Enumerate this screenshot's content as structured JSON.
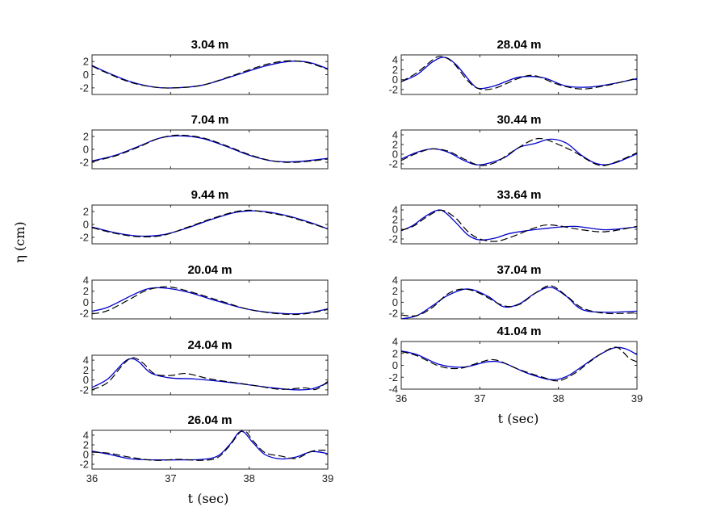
{
  "figure": {
    "ylabel": "η (cm)",
    "xlabel": "t (sec)"
  },
  "chart_data": [
    {
      "type": "line",
      "title": "3.04 m",
      "xlim": [
        36,
        39
      ],
      "ylim": [
        -3,
        3
      ],
      "yticks": [
        -2,
        0,
        2
      ],
      "xticks": [],
      "series": [
        {
          "style": "model",
          "color": "#0000cc",
          "x": [
            36,
            36.2,
            36.5,
            36.8,
            37.05,
            37.4,
            37.8,
            38.2,
            38.5,
            38.75,
            39
          ],
          "y": [
            1.4,
            0.3,
            -1.1,
            -1.9,
            -2.0,
            -1.6,
            -0.2,
            1.3,
            2.0,
            1.9,
            0.9
          ]
        },
        {
          "style": "measured",
          "color": "#000000",
          "x": [
            36,
            36.2,
            36.5,
            36.8,
            37.05,
            37.4,
            37.8,
            38.2,
            38.5,
            38.75,
            39
          ],
          "y": [
            1.3,
            0.2,
            -1.2,
            -1.9,
            -2.0,
            -1.6,
            -0.1,
            1.5,
            2.1,
            1.8,
            0.8
          ]
        }
      ]
    },
    {
      "type": "line",
      "title": "7.04 m",
      "xlim": [
        36,
        39
      ],
      "ylim": [
        -3,
        3
      ],
      "yticks": [
        -2,
        0,
        2
      ],
      "xticks": [],
      "series": [
        {
          "style": "model",
          "color": "#0000cc",
          "x": [
            36,
            36.3,
            36.6,
            36.85,
            37.1,
            37.4,
            37.7,
            38.0,
            38.3,
            38.6,
            39
          ],
          "y": [
            -1.8,
            -0.9,
            0.5,
            1.7,
            2.1,
            1.7,
            0.5,
            -0.9,
            -1.8,
            -1.9,
            -1.4
          ]
        },
        {
          "style": "measured",
          "color": "#000000",
          "x": [
            36,
            36.3,
            36.6,
            36.85,
            37.1,
            37.4,
            37.7,
            38.0,
            38.3,
            38.6,
            39
          ],
          "y": [
            -1.9,
            -1.0,
            0.4,
            1.7,
            2.2,
            1.8,
            0.6,
            -0.8,
            -1.8,
            -2.0,
            -1.5
          ]
        }
      ]
    },
    {
      "type": "line",
      "title": "9.44 m",
      "xlim": [
        36,
        39
      ],
      "ylim": [
        -3,
        3
      ],
      "yticks": [
        -2,
        0,
        2
      ],
      "xticks": [],
      "series": [
        {
          "style": "model",
          "color": "#0000cc",
          "x": [
            36,
            36.3,
            36.6,
            36.9,
            37.2,
            37.5,
            37.8,
            38.0,
            38.2,
            38.5,
            38.8,
            39
          ],
          "y": [
            -0.4,
            -1.3,
            -1.8,
            -1.6,
            -0.6,
            0.7,
            1.8,
            2.1,
            2.0,
            1.3,
            0.2,
            -0.7
          ]
        },
        {
          "style": "measured",
          "color": "#000000",
          "x": [
            36,
            36.3,
            36.6,
            36.9,
            37.2,
            37.5,
            37.8,
            38.0,
            38.2,
            38.5,
            38.8,
            39
          ],
          "y": [
            -0.5,
            -1.4,
            -1.9,
            -1.7,
            -0.5,
            0.8,
            1.9,
            2.2,
            1.9,
            1.2,
            0.1,
            -0.7
          ]
        }
      ]
    },
    {
      "type": "line",
      "title": "20.04 m",
      "xlim": [
        36,
        39
      ],
      "ylim": [
        -3,
        4
      ],
      "yticks": [
        -2,
        0,
        2,
        4
      ],
      "xticks": [],
      "series": [
        {
          "style": "model",
          "color": "#0000cc",
          "x": [
            36,
            36.2,
            36.5,
            36.7,
            36.9,
            37.2,
            37.6,
            38.0,
            38.4,
            38.7,
            39
          ],
          "y": [
            -1.6,
            -0.9,
            1.2,
            2.4,
            2.6,
            1.9,
            0.2,
            -1.3,
            -2.0,
            -2.0,
            -1.2
          ]
        },
        {
          "style": "measured",
          "color": "#000000",
          "x": [
            36,
            36.2,
            36.5,
            36.7,
            36.95,
            37.2,
            37.6,
            38.0,
            38.4,
            38.7,
            39
          ],
          "y": [
            -2.1,
            -1.5,
            0.7,
            2.2,
            2.8,
            2.1,
            0.4,
            -1.3,
            -2.1,
            -2.1,
            -1.3
          ]
        }
      ]
    },
    {
      "type": "line",
      "title": "24.04 m",
      "xlim": [
        36,
        39
      ],
      "ylim": [
        -3,
        5
      ],
      "yticks": [
        -2,
        0,
        2,
        4
      ],
      "xticks": [],
      "series": [
        {
          "style": "model",
          "color": "#0000cc",
          "x": [
            36,
            36.2,
            36.4,
            36.5,
            36.6,
            36.75,
            37.0,
            37.3,
            37.7,
            38.0,
            38.3,
            38.6,
            38.8,
            39
          ],
          "y": [
            -1.5,
            0.2,
            3.5,
            4.3,
            3.6,
            1.4,
            0.4,
            0.2,
            -0.4,
            -1.0,
            -1.6,
            -2.0,
            -1.8,
            -0.6
          ]
        },
        {
          "style": "measured",
          "color": "#000000",
          "x": [
            36,
            36.2,
            36.4,
            36.52,
            36.65,
            36.8,
            37.0,
            37.2,
            37.5,
            37.8,
            38.1,
            38.4,
            38.7,
            38.85,
            39
          ],
          "y": [
            -2.0,
            -0.5,
            3.2,
            4.5,
            3.4,
            1.2,
            0.9,
            1.3,
            0.2,
            -0.5,
            -1.2,
            -1.9,
            -1.6,
            -1.9,
            -0.3
          ]
        }
      ]
    },
    {
      "type": "line",
      "title": "26.04 m",
      "xlim": [
        36,
        39
      ],
      "ylim": [
        -3,
        5
      ],
      "yticks": [
        -2,
        0,
        2,
        4
      ],
      "xticks": [
        36,
        37,
        38,
        39
      ],
      "series": [
        {
          "style": "model",
          "color": "#0000cc",
          "x": [
            36,
            36.2,
            36.5,
            36.8,
            37.1,
            37.4,
            37.6,
            37.75,
            37.9,
            38.05,
            38.2,
            38.4,
            38.6,
            38.8,
            39
          ],
          "y": [
            0.7,
            0.1,
            -0.9,
            -1.1,
            -1.1,
            -1.0,
            -0.3,
            2.0,
            4.8,
            2.4,
            0.0,
            -0.9,
            -0.5,
            0.6,
            0.2
          ]
        },
        {
          "style": "measured",
          "color": "#000000",
          "x": [
            36,
            36.2,
            36.5,
            36.8,
            37.1,
            37.4,
            37.6,
            37.75,
            37.92,
            38.05,
            38.2,
            38.4,
            38.6,
            38.8,
            39
          ],
          "y": [
            0.5,
            0.3,
            -0.6,
            -1.2,
            -1.0,
            -1.2,
            -0.6,
            1.8,
            5.0,
            2.8,
            0.4,
            -0.3,
            -0.8,
            0.7,
            0.9
          ]
        }
      ]
    },
    {
      "type": "line",
      "title": "28.04 m",
      "xlim": [
        36,
        39
      ],
      "ylim": [
        -3,
        5
      ],
      "yticks": [
        -2,
        0,
        2,
        4
      ],
      "xticks": [],
      "series": [
        {
          "style": "model",
          "color": "#0000cc",
          "x": [
            36,
            36.2,
            36.4,
            36.55,
            36.7,
            36.9,
            37.0,
            37.2,
            37.5,
            37.8,
            38.1,
            38.4,
            38.7,
            39
          ],
          "y": [
            -0.4,
            1.0,
            3.6,
            4.5,
            3.0,
            -0.8,
            -1.8,
            -1.2,
            0.5,
            0.4,
            -1.3,
            -1.5,
            -0.8,
            0.2
          ]
        },
        {
          "style": "measured",
          "color": "#000000",
          "x": [
            36,
            36.2,
            36.4,
            36.5,
            36.65,
            36.85,
            37.0,
            37.2,
            37.5,
            37.7,
            38.0,
            38.3,
            38.6,
            38.8,
            39
          ],
          "y": [
            -0.4,
            1.4,
            4.0,
            4.7,
            3.6,
            -0.3,
            -1.9,
            -1.7,
            0.3,
            0.8,
            -1.0,
            -1.9,
            -1.2,
            -0.5,
            0.3
          ]
        }
      ]
    },
    {
      "type": "line",
      "title": "30.44 m",
      "xlim": [
        36,
        39
      ],
      "ylim": [
        -3,
        5
      ],
      "yticks": [
        -2,
        0,
        2,
        4
      ],
      "xticks": [],
      "series": [
        {
          "style": "model",
          "color": "#0000cc",
          "x": [
            36,
            36.2,
            36.4,
            36.6,
            36.8,
            37.0,
            37.3,
            37.5,
            37.7,
            37.9,
            38.1,
            38.3,
            38.5,
            38.7,
            39
          ],
          "y": [
            -1.0,
            0.4,
            1.1,
            0.4,
            -1.3,
            -2.2,
            -0.8,
            1.4,
            2.2,
            3.1,
            2.3,
            -0.3,
            -2.0,
            -1.9,
            0.1
          ]
        },
        {
          "style": "measured",
          "color": "#000000",
          "x": [
            36,
            36.2,
            36.4,
            36.6,
            36.8,
            37.0,
            37.2,
            37.4,
            37.65,
            37.8,
            38.0,
            38.2,
            38.5,
            38.7,
            39
          ],
          "y": [
            -1.3,
            0.2,
            1.1,
            0.6,
            -1.0,
            -2.3,
            -1.7,
            0.4,
            2.8,
            3.2,
            2.0,
            0.5,
            -2.2,
            -1.8,
            0.3
          ]
        }
      ]
    },
    {
      "type": "line",
      "title": "33.64 m",
      "xlim": [
        36,
        39
      ],
      "ylim": [
        -3,
        5
      ],
      "yticks": [
        -2,
        0,
        2,
        4
      ],
      "xticks": [],
      "series": [
        {
          "style": "model",
          "color": "#0000cc",
          "x": [
            36,
            36.15,
            36.3,
            36.45,
            36.55,
            36.7,
            36.85,
            37.0,
            37.2,
            37.4,
            37.8,
            38.2,
            38.6,
            39
          ],
          "y": [
            -0.3,
            0.8,
            2.6,
            3.9,
            3.6,
            1.3,
            -1.2,
            -2.2,
            -1.8,
            -0.8,
            0.1,
            0.6,
            -0.1,
            0.5
          ]
        },
        {
          "style": "measured",
          "color": "#000000",
          "x": [
            36,
            36.15,
            36.3,
            36.45,
            36.55,
            36.7,
            36.85,
            37.0,
            37.2,
            37.4,
            37.7,
            37.9,
            38.3,
            38.6,
            39
          ],
          "y": [
            -0.2,
            0.6,
            2.3,
            3.7,
            3.8,
            2.2,
            -0.5,
            -2.0,
            -2.5,
            -1.6,
            0.3,
            0.9,
            -0.1,
            -0.5,
            0.6
          ]
        }
      ]
    },
    {
      "type": "line",
      "title": "37.04 m",
      "xlim": [
        36,
        39
      ],
      "ylim": [
        -3,
        4
      ],
      "yticks": [
        -2,
        0,
        2,
        4
      ],
      "xticks": [],
      "series": [
        {
          "style": "model",
          "color": "#0000cc",
          "x": [
            36,
            36.2,
            36.4,
            36.6,
            36.85,
            37.1,
            37.3,
            37.5,
            37.7,
            37.9,
            38.1,
            38.3,
            38.6,
            39
          ],
          "y": [
            -3.0,
            -2.4,
            -0.6,
            1.3,
            2.4,
            1.1,
            -0.8,
            -0.3,
            1.6,
            2.7,
            1.1,
            -1.3,
            -1.8,
            -1.6
          ]
        },
        {
          "style": "measured",
          "color": "#000000",
          "x": [
            36,
            36.2,
            36.4,
            36.6,
            36.8,
            37.0,
            37.3,
            37.5,
            37.7,
            37.9,
            38.1,
            38.3,
            38.6,
            39
          ],
          "y": [
            -2.3,
            -2.4,
            -0.9,
            1.6,
            2.4,
            1.6,
            -0.6,
            -0.4,
            1.6,
            3.0,
            1.2,
            -1.0,
            -2.0,
            -1.9
          ]
        }
      ]
    },
    {
      "type": "line",
      "title": "41.04 m",
      "xlim": [
        36,
        39
      ],
      "ylim": [
        -4,
        4
      ],
      "yticks": [
        -4,
        -2,
        0,
        2,
        4
      ],
      "xticks": [
        36,
        37,
        38,
        39
      ],
      "series": [
        {
          "style": "model",
          "color": "#0000cc",
          "x": [
            36,
            36.2,
            36.5,
            36.8,
            37.1,
            37.3,
            37.6,
            37.9,
            38.1,
            38.3,
            38.5,
            38.7,
            38.85,
            39
          ],
          "y": [
            2.4,
            1.8,
            0.1,
            -0.3,
            0.6,
            0.4,
            -1.3,
            -2.4,
            -1.9,
            -0.2,
            1.6,
            2.9,
            2.8,
            1.8
          ]
        },
        {
          "style": "measured",
          "color": "#000000",
          "x": [
            36,
            36.2,
            36.5,
            36.75,
            37.0,
            37.2,
            37.5,
            37.8,
            38.0,
            38.2,
            38.4,
            38.6,
            38.75,
            38.9,
            39
          ],
          "y": [
            2.3,
            1.6,
            -0.2,
            -0.5,
            0.5,
            0.9,
            -0.7,
            -2.0,
            -2.6,
            -1.4,
            0.6,
            2.4,
            3.0,
            1.2,
            0.6
          ]
        }
      ]
    }
  ]
}
